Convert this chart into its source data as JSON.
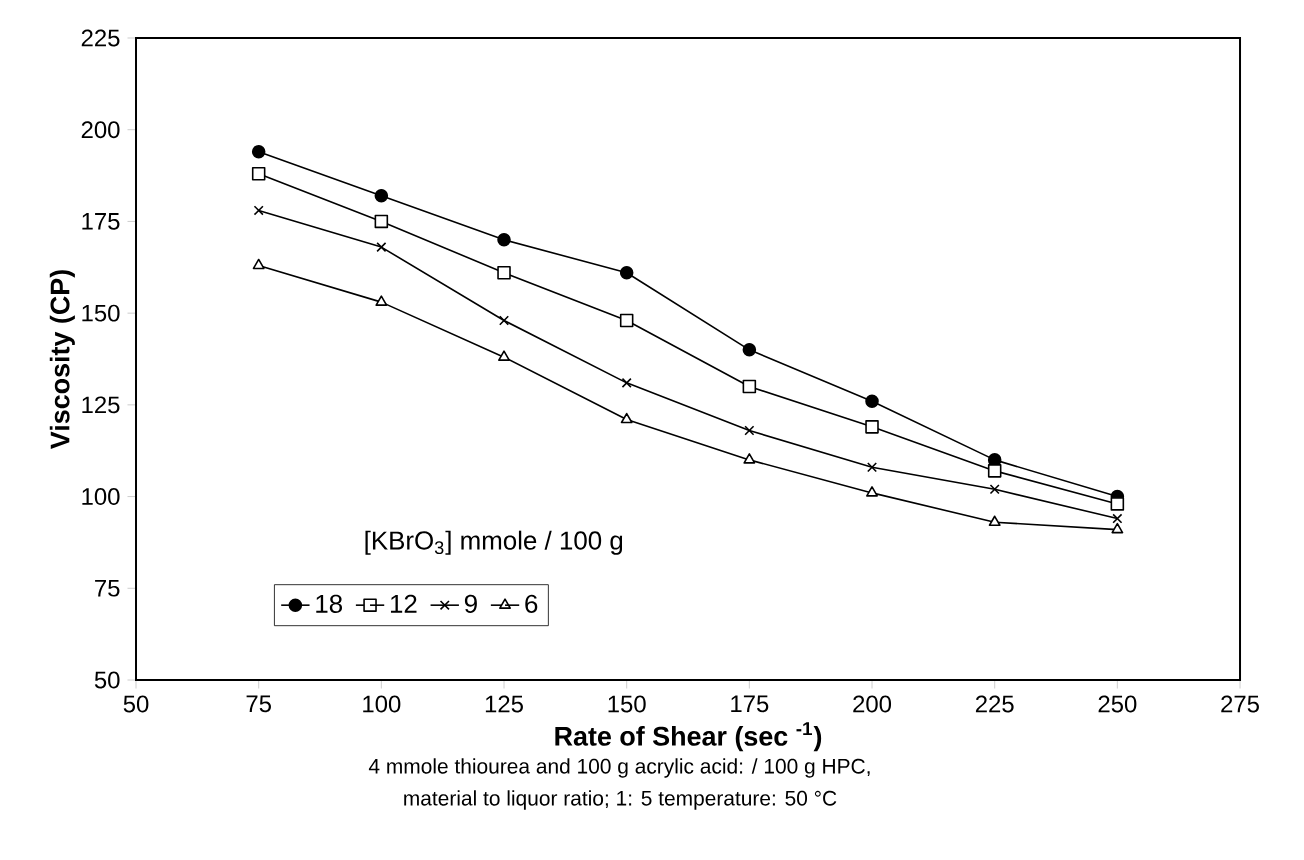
{
  "chart_data": {
    "type": "line",
    "xlabel": "Rate of Shear (sec $^{-1}$)",
    "ylabel": "Viscosity (CP)",
    "legend_title": "[KBrO$_{3}$] mmole / 100 g",
    "x": [
      75,
      100,
      125,
      150,
      175,
      200,
      225,
      250
    ],
    "series": [
      {
        "name": "18",
        "color": "#000000",
        "marker": "circle",
        "values": [
          194,
          182,
          170,
          161,
          140,
          126,
          110,
          100
        ]
      },
      {
        "name": "12",
        "color": "#000000",
        "marker": "square",
        "values": [
          188,
          175,
          161,
          148,
          130,
          119,
          107,
          98
        ]
      },
      {
        "name": "9",
        "color": "#000000",
        "marker": "cross",
        "values": [
          178,
          168,
          148,
          131,
          118,
          108,
          102,
          94
        ]
      },
      {
        "name": "6",
        "color": "#000000",
        "marker": "triangle",
        "values": [
          163,
          153,
          138,
          121,
          110,
          101,
          93,
          91
        ]
      }
    ],
    "xlim": [
      50,
      275
    ],
    "xticks": [
      50,
      75,
      100,
      125,
      150,
      175,
      200,
      225,
      250,
      275
    ],
    "ylim": [
      50,
      225
    ],
    "yticks": [
      50,
      75,
      100,
      125,
      150,
      175,
      200,
      225
    ],
    "legend": "bottom left",
    "line_style": "solid",
    "annotations": [
      "4 mmole thiourea and 100 g acrylic acid: / 100 g HPC,",
      "material to liquor ratio; 1: 5 temperature: 50 °C"
    ]
  }
}
